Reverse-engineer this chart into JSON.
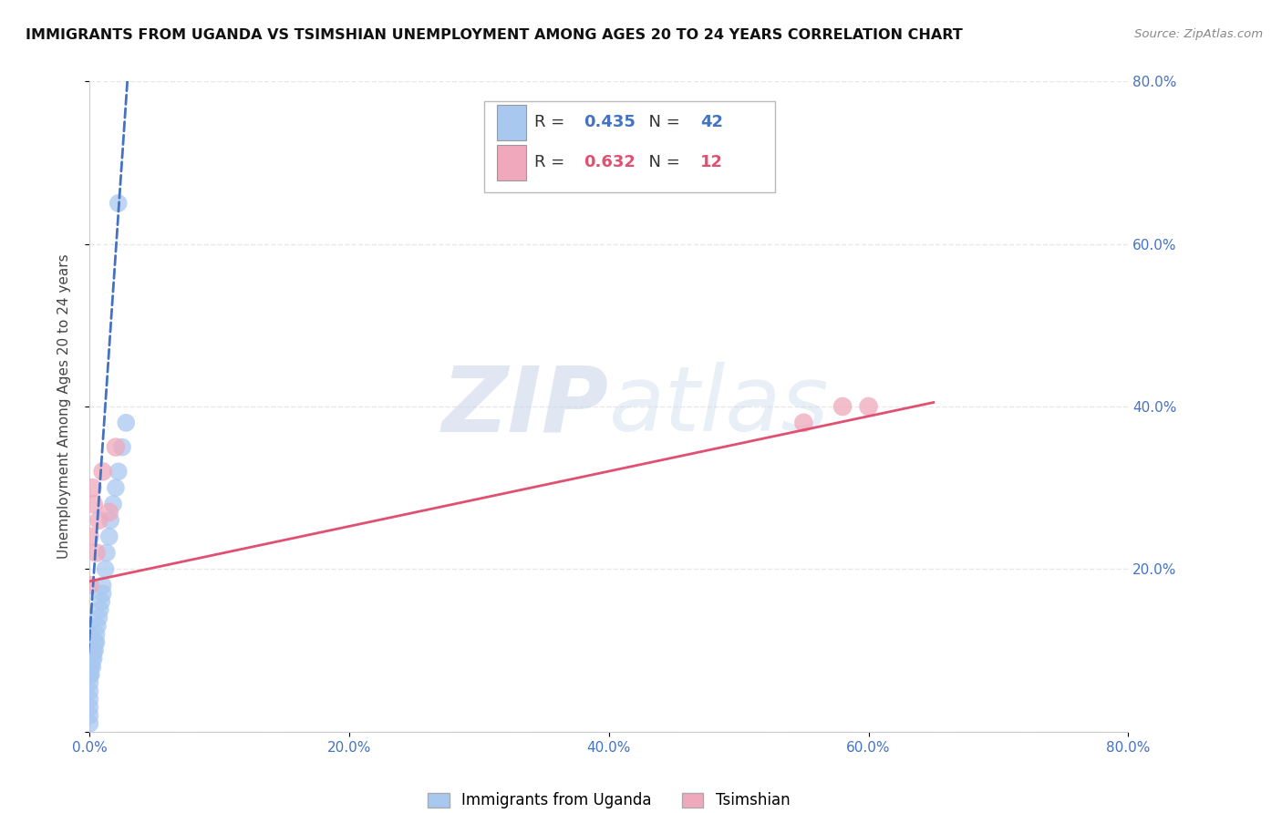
{
  "title": "IMMIGRANTS FROM UGANDA VS TSIMSHIAN UNEMPLOYMENT AMONG AGES 20 TO 24 YEARS CORRELATION CHART",
  "source": "Source: ZipAtlas.com",
  "ylabel": "Unemployment Among Ages 20 to 24 years",
  "xlim": [
    0,
    0.8
  ],
  "ylim": [
    0,
    0.8
  ],
  "xtick_vals": [
    0.0,
    0.2,
    0.4,
    0.6,
    0.8
  ],
  "ytick_vals": [
    0.0,
    0.2,
    0.4,
    0.6,
    0.8
  ],
  "xtick_labels": [
    "0.0%",
    "20.0%",
    "40.0%",
    "60.0%",
    "80.0%"
  ],
  "ytick_labels": [
    "",
    "20.0%",
    "40.0%",
    "60.0%",
    "80.0%"
  ],
  "uganda_R": 0.435,
  "uganda_N": 42,
  "tsimshian_R": 0.632,
  "tsimshian_N": 12,
  "uganda_color": "#a8c8f0",
  "tsimshian_color": "#f0a8bc",
  "uganda_line_color": "#4472c4",
  "tsimshian_line_color": "#e05070",
  "tick_label_color": "#4472c4",
  "legend_label_uganda": "Immigrants from Uganda",
  "legend_label_tsimshian": "Tsimshian",
  "background_color": "#ffffff",
  "grid_color": "#e8e8e8",
  "uganda_x": [
    0.0,
    0.0,
    0.0,
    0.0,
    0.0,
    0.0,
    0.0,
    0.0,
    0.0,
    0.0,
    0.0,
    0.0,
    0.0,
    0.0,
    0.0,
    0.0,
    0.001,
    0.001,
    0.002,
    0.002,
    0.003,
    0.003,
    0.004,
    0.004,
    0.005,
    0.005,
    0.006,
    0.007,
    0.008,
    0.009,
    0.01,
    0.01,
    0.012,
    0.013,
    0.015,
    0.016,
    0.018,
    0.02,
    0.022,
    0.025,
    0.028,
    0.022
  ],
  "uganda_y": [
    0.01,
    0.02,
    0.03,
    0.04,
    0.05,
    0.06,
    0.07,
    0.07,
    0.08,
    0.08,
    0.09,
    0.09,
    0.1,
    0.1,
    0.11,
    0.12,
    0.07,
    0.08,
    0.08,
    0.09,
    0.09,
    0.1,
    0.1,
    0.11,
    0.11,
    0.12,
    0.13,
    0.14,
    0.15,
    0.16,
    0.17,
    0.18,
    0.2,
    0.22,
    0.24,
    0.26,
    0.28,
    0.3,
    0.32,
    0.35,
    0.38,
    0.65
  ],
  "tsimshian_x": [
    0.0,
    0.0,
    0.002,
    0.003,
    0.005,
    0.007,
    0.01,
    0.015,
    0.02,
    0.55,
    0.58,
    0.6
  ],
  "tsimshian_y": [
    0.18,
    0.24,
    0.3,
    0.28,
    0.22,
    0.26,
    0.32,
    0.27,
    0.35,
    0.38,
    0.4,
    0.4
  ],
  "uganda_line_x0": 0.0,
  "uganda_line_y0": 0.12,
  "uganda_line_x1": 0.023,
  "uganda_line_y1": 0.66,
  "uganda_line_x_ext0": -0.001,
  "uganda_line_x_ext1": 0.038,
  "tsimshian_line_x0": 0.0,
  "tsimshian_line_y0": 0.185,
  "tsimshian_line_x1": 0.65,
  "tsimshian_line_y1": 0.405
}
